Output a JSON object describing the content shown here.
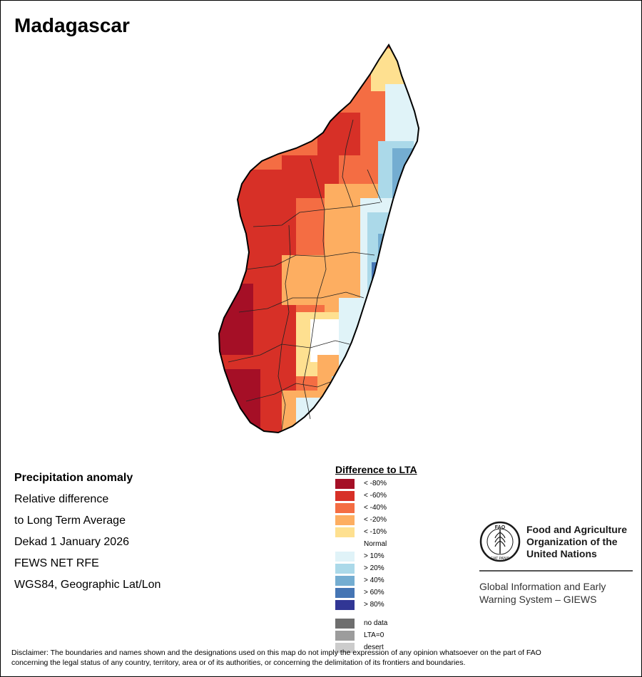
{
  "title": "Madagascar",
  "info": {
    "heading": "Precipitation anomaly",
    "lines": [
      "Relative difference",
      "to Long Term Average",
      "Dekad 1 January 2026",
      "FEWS NET RFE",
      "WGS84, Geographic Lat/Lon"
    ]
  },
  "legend": {
    "title": "Difference to LTA",
    "classes": [
      {
        "label": "< -80%",
        "color": "#a50f26"
      },
      {
        "label": "< -60%",
        "color": "#d73027"
      },
      {
        "label": "< -40%",
        "color": "#f46d43"
      },
      {
        "label": "< -20%",
        "color": "#fdae61"
      },
      {
        "label": "< -10%",
        "color": "#fee090"
      },
      {
        "label": "Normal",
        "color": "#ffffff"
      },
      {
        "label": "> 10%",
        "color": "#e0f3f8"
      },
      {
        "label": "> 20%",
        "color": "#abd9e9"
      },
      {
        "label": "> 40%",
        "color": "#74add1"
      },
      {
        "label": "> 60%",
        "color": "#4575b4"
      },
      {
        "label": "> 80%",
        "color": "#313695"
      }
    ],
    "extra": [
      {
        "label": "no data",
        "color": "#6e6e6e"
      },
      {
        "label": "LTA=0",
        "color": "#9c9c9c"
      },
      {
        "label": "desert",
        "color": "#cccccc"
      }
    ]
  },
  "organization": {
    "logo_text": "FAO",
    "logo_motto": "FIAT PANIS",
    "name_lines": [
      "Food and Agriculture",
      "Organization of the",
      "United Nations"
    ],
    "system_lines": [
      "Global Information and Early",
      "Warning System – GIEWS"
    ]
  },
  "disclaimer_lines": [
    "Disclaimer: The boundaries and names shown and the designations used on this map do not imply the expression of any opinion whatsoever on the part of FAO",
    "concerning the legal status of any country, territory, area or of its authorities, or concerning the delimitation of its frontiers and boundaries."
  ]
}
